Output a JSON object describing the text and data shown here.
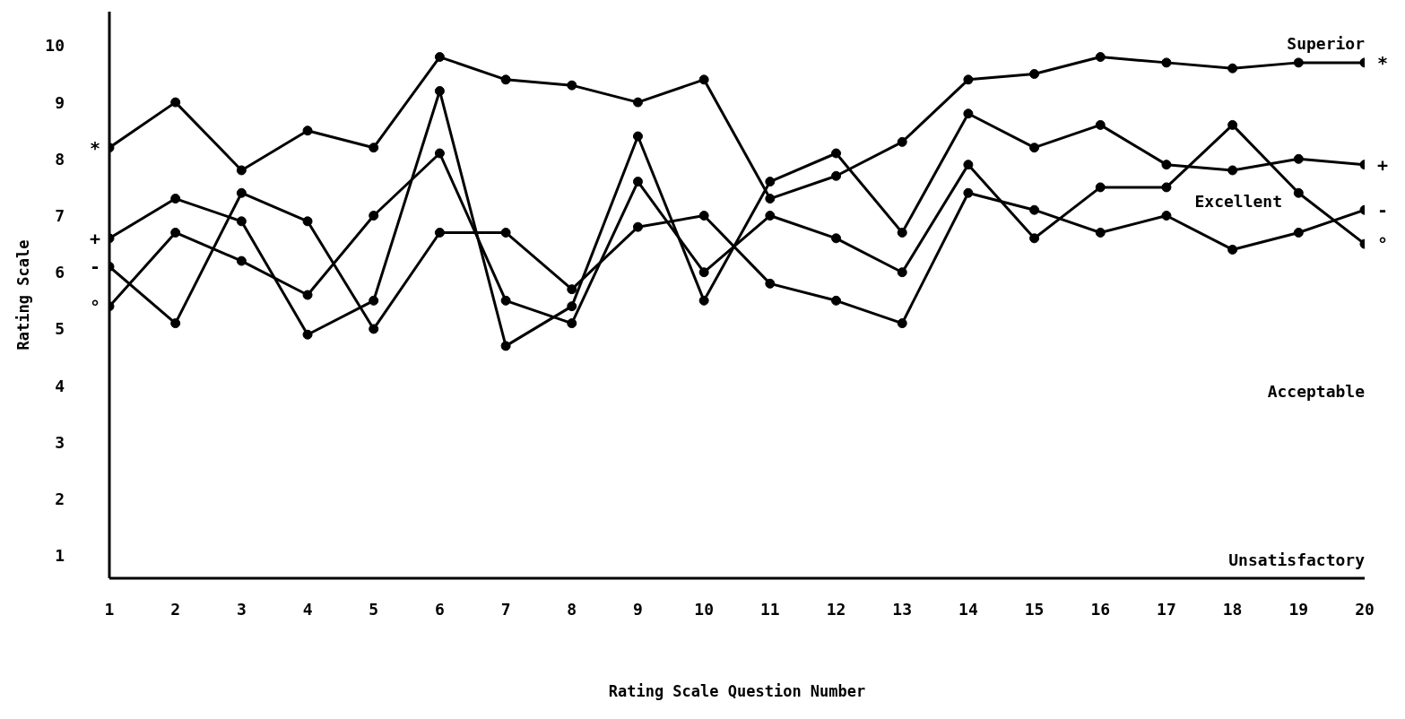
{
  "chart_data": {
    "type": "line",
    "xlabel": "Rating Scale Question Number",
    "ylabel": "Rating Scale",
    "x": [
      1,
      2,
      3,
      4,
      5,
      6,
      7,
      8,
      9,
      10,
      11,
      12,
      13,
      14,
      15,
      16,
      17,
      18,
      19,
      20
    ],
    "xlim": [
      1,
      20
    ],
    "xticks": [
      1,
      2,
      3,
      4,
      5,
      6,
      7,
      8,
      9,
      10,
      11,
      12,
      13,
      14,
      15,
      16,
      17,
      18,
      19,
      20
    ],
    "ylim": [
      0.6,
      10.6
    ],
    "yticks": [
      1,
      2,
      3,
      4,
      5,
      6,
      7,
      8,
      9,
      10
    ],
    "series": [
      {
        "name": "*",
        "color": "#000000",
        "values": [
          8.2,
          9.0,
          7.8,
          8.5,
          8.2,
          9.8,
          9.4,
          9.3,
          9.0,
          9.4,
          7.3,
          7.7,
          8.3,
          9.4,
          9.5,
          9.8,
          9.7,
          9.6,
          9.7,
          9.7
        ]
      },
      {
        "name": "+",
        "color": "#000000",
        "values": [
          6.6,
          7.3,
          6.9,
          4.9,
          5.5,
          9.2,
          4.7,
          5.4,
          8.4,
          5.5,
          7.6,
          8.1,
          6.7,
          8.8,
          8.2,
          8.6,
          7.9,
          7.8,
          8.0,
          7.9
        ]
      },
      {
        "name": "-",
        "color": "#000000",
        "values": [
          6.1,
          5.1,
          7.4,
          6.9,
          5.0,
          6.7,
          6.7,
          5.7,
          6.8,
          7.0,
          5.8,
          5.5,
          5.1,
          7.4,
          7.1,
          6.7,
          7.0,
          6.4,
          6.7,
          7.1
        ]
      },
      {
        "name": "°",
        "color": "#000000",
        "values": [
          5.4,
          6.7,
          6.2,
          5.6,
          7.0,
          8.1,
          5.5,
          5.1,
          7.6,
          6.0,
          7.0,
          6.6,
          6.0,
          7.9,
          6.6,
          7.5,
          7.5,
          8.6,
          7.4,
          6.5
        ]
      }
    ],
    "annotations": [
      "Superior",
      "Excellent",
      "Acceptable",
      "Unsatisfactory"
    ],
    "grid": false,
    "legend": false,
    "marker": "circle",
    "line_style": "solid"
  }
}
